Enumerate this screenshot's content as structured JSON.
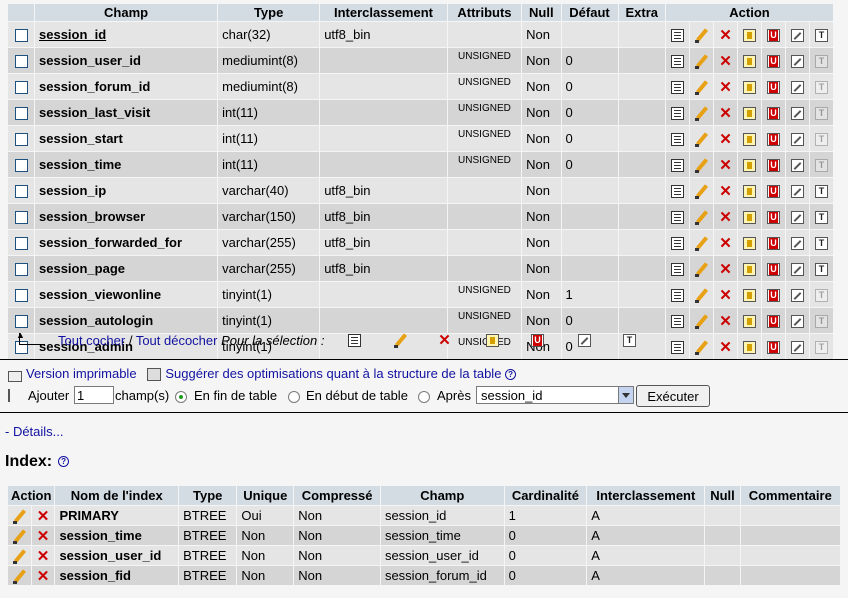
{
  "structure": {
    "headers": [
      "Champ",
      "Type",
      "Interclassement",
      "Attributs",
      "Null",
      "Défaut",
      "Extra",
      "Action"
    ],
    "rows": [
      {
        "field": "session_id",
        "type": "char(32)",
        "collation": "utf8_bin",
        "attributes": "",
        "null": "Non",
        "default": "",
        "extra": "",
        "primary": true,
        "fulltext": true
      },
      {
        "field": "session_user_id",
        "type": "mediumint(8)",
        "collation": "",
        "attributes": "UNSIGNED",
        "null": "Non",
        "default": "0",
        "extra": "",
        "primary": false,
        "fulltext": false
      },
      {
        "field": "session_forum_id",
        "type": "mediumint(8)",
        "collation": "",
        "attributes": "UNSIGNED",
        "null": "Non",
        "default": "0",
        "extra": "",
        "primary": false,
        "fulltext": false
      },
      {
        "field": "session_last_visit",
        "type": "int(11)",
        "collation": "",
        "attributes": "UNSIGNED",
        "null": "Non",
        "default": "0",
        "extra": "",
        "primary": false,
        "fulltext": false
      },
      {
        "field": "session_start",
        "type": "int(11)",
        "collation": "",
        "attributes": "UNSIGNED",
        "null": "Non",
        "default": "0",
        "extra": "",
        "primary": false,
        "fulltext": false
      },
      {
        "field": "session_time",
        "type": "int(11)",
        "collation": "",
        "attributes": "UNSIGNED",
        "null": "Non",
        "default": "0",
        "extra": "",
        "primary": false,
        "fulltext": false
      },
      {
        "field": "session_ip",
        "type": "varchar(40)",
        "collation": "utf8_bin",
        "attributes": "",
        "null": "Non",
        "default": "",
        "extra": "",
        "primary": false,
        "fulltext": true
      },
      {
        "field": "session_browser",
        "type": "varchar(150)",
        "collation": "utf8_bin",
        "attributes": "",
        "null": "Non",
        "default": "",
        "extra": "",
        "primary": false,
        "fulltext": true
      },
      {
        "field": "session_forwarded_for",
        "type": "varchar(255)",
        "collation": "utf8_bin",
        "attributes": "",
        "null": "Non",
        "default": "",
        "extra": "",
        "primary": false,
        "fulltext": true
      },
      {
        "field": "session_page",
        "type": "varchar(255)",
        "collation": "utf8_bin",
        "attributes": "",
        "null": "Non",
        "default": "",
        "extra": "",
        "primary": false,
        "fulltext": true
      },
      {
        "field": "session_viewonline",
        "type": "tinyint(1)",
        "collation": "",
        "attributes": "UNSIGNED",
        "null": "Non",
        "default": "1",
        "extra": "",
        "primary": false,
        "fulltext": false
      },
      {
        "field": "session_autologin",
        "type": "tinyint(1)",
        "collation": "",
        "attributes": "UNSIGNED",
        "null": "Non",
        "default": "0",
        "extra": "",
        "primary": false,
        "fulltext": false
      },
      {
        "field": "session_admin",
        "type": "tinyint(1)",
        "collation": "",
        "attributes": "UNSIGNED",
        "null": "Non",
        "default": "0",
        "extra": "",
        "primary": false,
        "fulltext": false
      }
    ],
    "action_icons": [
      "browse-icon",
      "edit-icon",
      "drop-icon",
      "primary-key-icon",
      "unique-icon",
      "index-icon",
      "fulltext-icon"
    ]
  },
  "selection": {
    "check_all": "Tout cocher",
    "separator": " / ",
    "uncheck_all": "Tout décocher",
    "with_selected": "Pour la sélection :"
  },
  "links": {
    "print_view": "Version imprimable",
    "propose_structure": "Suggérer des optimisations quant à la structure de la table"
  },
  "add_field": {
    "add_label": "Ajouter",
    "count_value": "1",
    "fields_label": "champ(s)",
    "at_end": "En fin de table",
    "at_beginning": "En début de table",
    "after": "Après",
    "after_selected": "session_id",
    "selected_option": "at_end",
    "go_label": "Exécuter"
  },
  "details_link": "- Détails...",
  "indexes": {
    "title": "Index:",
    "headers": [
      "Action",
      "Nom de l'index",
      "Type",
      "Unique",
      "Compressé",
      "Champ",
      "Cardinalité",
      "Interclassement",
      "Null",
      "Commentaire"
    ],
    "rows": [
      {
        "name": "PRIMARY",
        "type": "BTREE",
        "unique": "Oui",
        "packed": "Non",
        "column": "session_id",
        "cardinality": "1",
        "collation": "A",
        "null": "",
        "comment": ""
      },
      {
        "name": "session_time",
        "type": "BTREE",
        "unique": "Non",
        "packed": "Non",
        "column": "session_time",
        "cardinality": "0",
        "collation": "A",
        "null": "",
        "comment": ""
      },
      {
        "name": "session_user_id",
        "type": "BTREE",
        "unique": "Non",
        "packed": "Non",
        "column": "session_user_id",
        "cardinality": "0",
        "collation": "A",
        "null": "",
        "comment": ""
      },
      {
        "name": "session_fid",
        "type": "BTREE",
        "unique": "Non",
        "packed": "Non",
        "column": "session_forum_id",
        "cardinality": "0",
        "collation": "A",
        "null": "",
        "comment": ""
      }
    ]
  }
}
